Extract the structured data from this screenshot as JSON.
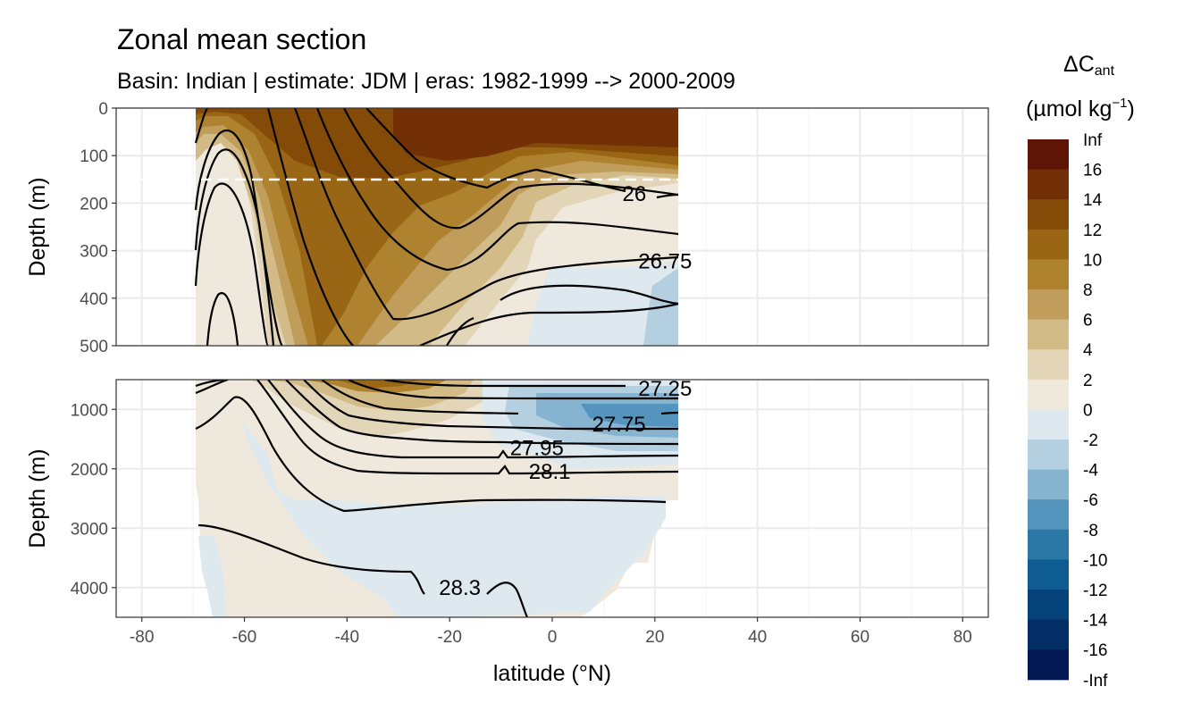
{
  "chart_data": {
    "type": "heatmap",
    "title": "Zonal mean section",
    "subtitle": "Basin: Indian | estimate: JDM  | eras: 1982-1999 --> 2000-2009",
    "xlabel": "latitude (°N)",
    "xlim": [
      -85,
      85
    ],
    "x_ticks": [
      "-80",
      "-60",
      "-40",
      "-20",
      "0",
      "20",
      "40",
      "60",
      "80"
    ],
    "x_tick_values": [
      -80,
      -60,
      -40,
      -20,
      0,
      20,
      40,
      60,
      80
    ],
    "data_lat_range": [
      -70,
      24
    ],
    "panels": [
      {
        "ylabel": "Depth (m)",
        "ylim": [
          0,
          500
        ],
        "y_ticks": [
          "0",
          "100",
          "200",
          "300",
          "400",
          "500"
        ],
        "y_tick_values": [
          0,
          100,
          200,
          300,
          400,
          500
        ],
        "reference_depth": 150,
        "isopycnal_labels": [
          {
            "text": "26",
            "lat": 16,
            "depth": 180
          },
          {
            "text": "26.75",
            "lat": 22,
            "depth": 322
          }
        ]
      },
      {
        "ylabel": "Depth (m)",
        "ylim": [
          500,
          4500
        ],
        "y_ticks": [
          "1000",
          "2000",
          "3000",
          "4000"
        ],
        "y_tick_values": [
          1000,
          2000,
          3000,
          4000
        ],
        "isopycnal_labels": [
          {
            "text": "27.25",
            "lat": 22,
            "depth": 650
          },
          {
            "text": "27.75",
            "lat": 13,
            "depth": 1250
          },
          {
            "text": "27.95",
            "lat": -3,
            "depth": 1650
          },
          {
            "text": "28.1",
            "lat": -0.5,
            "depth": 2050
          },
          {
            "text": "28.3",
            "lat": -18,
            "depth": 4000
          }
        ]
      }
    ],
    "legend": {
      "title_main": "ΔC",
      "title_sub": "ant",
      "units": "(µmol kg",
      "units_sup": "−1",
      "units_end": ")",
      "labels": [
        "Inf",
        "16",
        "14",
        "12",
        "10",
        "8",
        "6",
        "4",
        "2",
        "0",
        "-2",
        "-4",
        "-6",
        "-8",
        "-10",
        "-12",
        "-14",
        "-16",
        "-Inf"
      ],
      "colors": [
        "#5f1505",
        "#733006",
        "#844a07",
        "#986614",
        "#ae822e",
        "#c09d5b",
        "#d3bb87",
        "#e3d5b7",
        "#efe8dc",
        "#dde8ef",
        "#b4cfe0",
        "#86b3d0",
        "#5595bd",
        "#2b77a6",
        "#0e5c91",
        "#06437a",
        "#032d65",
        "#011852"
      ]
    }
  }
}
